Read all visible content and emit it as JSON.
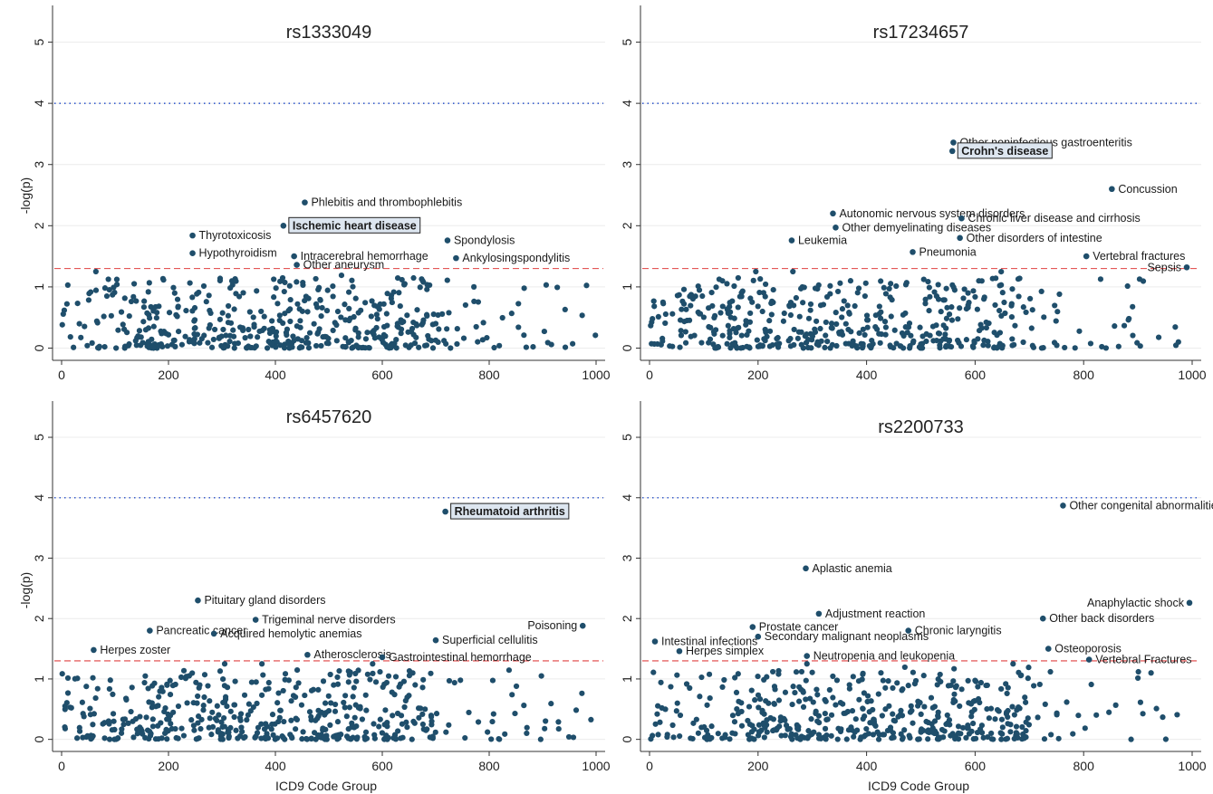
{
  "figure": {
    "xlabel": "ICD9 Code Group",
    "ylabel": "-log(p)"
  },
  "chart_data": [
    {
      "type": "scatter",
      "title": "rs1333049",
      "xlim": [
        0,
        1000
      ],
      "ylim": [
        -0.2,
        5.6
      ],
      "xticks": [
        0,
        200,
        400,
        600,
        800,
        1000
      ],
      "yticks": [
        0,
        1,
        2,
        3,
        4,
        5
      ],
      "grid": true,
      "bonferroni_threshold": 4,
      "nominal_threshold": 1.3,
      "point_color": "#1f4e6b",
      "bonferroni_color": "#3a5fcd",
      "nominal_color": "#e04040",
      "highlighted": [
        {
          "label": "Ischemic heart disease",
          "x": 415,
          "y": 2.0
        }
      ],
      "annotations": [
        {
          "label": "Phlebitis and thrombophlebitis",
          "x": 455,
          "y": 2.38
        },
        {
          "label": "Thyrotoxicosis",
          "x": 245,
          "y": 1.84
        },
        {
          "label": "Hypothyroidism",
          "x": 245,
          "y": 1.55
        },
        {
          "label": "Intracerebral hemorrhage",
          "x": 435,
          "y": 1.5
        },
        {
          "label": "Other aneurysm",
          "x": 440,
          "y": 1.36
        },
        {
          "label": "Spondylosis",
          "x": 722,
          "y": 1.76
        },
        {
          "label": "Ankylosingspondylitis",
          "x": 738,
          "y": 1.47
        }
      ],
      "seed": 11,
      "background_count": 480
    },
    {
      "type": "scatter",
      "title": "rs17234657",
      "xlim": [
        0,
        1000
      ],
      "ylim": [
        -0.2,
        5.6
      ],
      "xticks": [
        0,
        200,
        400,
        600,
        800,
        1000
      ],
      "yticks": [
        0,
        1,
        2,
        3,
        4,
        5
      ],
      "grid": true,
      "bonferroni_threshold": 4,
      "nominal_threshold": 1.3,
      "point_color": "#1f4e6b",
      "bonferroni_color": "#3a5fcd",
      "nominal_color": "#e04040",
      "highlighted": [
        {
          "label": "Crohn's disease",
          "x": 558,
          "y": 3.22
        }
      ],
      "annotations": [
        {
          "label": "Other noninfectious gastroenteritis",
          "x": 560,
          "y": 3.36
        },
        {
          "label": "Concussion",
          "x": 852,
          "y": 2.6
        },
        {
          "label": "Autonomic nervous system disorders",
          "x": 338,
          "y": 2.2
        },
        {
          "label": "Chronic liver disease and cirrhosis",
          "x": 575,
          "y": 2.12
        },
        {
          "label": "Other demyelinating diseases",
          "x": 343,
          "y": 1.97
        },
        {
          "label": "Other disorders of intestine",
          "x": 572,
          "y": 1.8
        },
        {
          "label": "Leukemia",
          "x": 262,
          "y": 1.76
        },
        {
          "label": "Pneumonia",
          "x": 485,
          "y": 1.57
        },
        {
          "label": "Vertebral fractures",
          "x": 805,
          "y": 1.5
        },
        {
          "label": "Sepsis",
          "x": 990,
          "y": 1.32
        }
      ],
      "seed": 23,
      "background_count": 470
    },
    {
      "type": "scatter",
      "title": "rs6457620",
      "xlim": [
        0,
        1000
      ],
      "ylim": [
        -0.2,
        5.6
      ],
      "xticks": [
        0,
        200,
        400,
        600,
        800,
        1000
      ],
      "yticks": [
        0,
        1,
        2,
        3,
        4,
        5
      ],
      "grid": true,
      "bonferroni_threshold": 4,
      "nominal_threshold": 1.3,
      "point_color": "#1f4e6b",
      "bonferroni_color": "#3a5fcd",
      "nominal_color": "#e04040",
      "highlighted": [
        {
          "label": "Rheumatoid arthritis",
          "x": 718,
          "y": 3.77
        }
      ],
      "annotations": [
        {
          "label": "Pituitary gland disorders",
          "x": 255,
          "y": 2.3
        },
        {
          "label": "Trigeminal nerve disorders",
          "x": 363,
          "y": 1.98
        },
        {
          "label": "Pancreatic cancer",
          "x": 165,
          "y": 1.8
        },
        {
          "label": "Acquired hemolytic anemias",
          "x": 285,
          "y": 1.75
        },
        {
          "label": "Superficial cellulitis",
          "x": 700,
          "y": 1.64
        },
        {
          "label": "Poisoning",
          "x": 975,
          "y": 1.88
        },
        {
          "label": "Herpes zoster",
          "x": 60,
          "y": 1.48
        },
        {
          "label": "Atherosclerosis",
          "x": 460,
          "y": 1.4
        },
        {
          "label": "Gastrointestinal hemorrhage",
          "x": 600,
          "y": 1.36
        }
      ],
      "seed": 37,
      "background_count": 480
    },
    {
      "type": "scatter",
      "title": "rs2200733",
      "xlim": [
        0,
        1000
      ],
      "ylim": [
        -0.2,
        5.6
      ],
      "xticks": [
        0,
        200,
        400,
        600,
        800,
        1000
      ],
      "yticks": [
        0,
        1,
        2,
        3,
        4,
        5
      ],
      "grid": true,
      "bonferroni_threshold": 4,
      "nominal_threshold": 1.3,
      "point_color": "#1f4e6b",
      "bonferroni_color": "#3a5fcd",
      "nominal_color": "#e04040",
      "highlighted": [],
      "annotations": [
        {
          "label": "Other congenital abnormalities",
          "x": 762,
          "y": 3.87
        },
        {
          "label": "Aplastic anemia",
          "x": 288,
          "y": 2.83
        },
        {
          "label": "Anaphylactic shock",
          "x": 995,
          "y": 2.26
        },
        {
          "label": "Adjustment reaction",
          "x": 312,
          "y": 2.08
        },
        {
          "label": "Other back disorders",
          "x": 725,
          "y": 2.0
        },
        {
          "label": "Intestinal infections",
          "x": 10,
          "y": 1.62
        },
        {
          "label": "Prostate cancer",
          "x": 190,
          "y": 1.86
        },
        {
          "label": "Chronic laryngitis",
          "x": 477,
          "y": 1.8
        },
        {
          "label": "Secondary malignant neoplasms",
          "x": 200,
          "y": 1.7
        },
        {
          "label": "Herpes simplex",
          "x": 55,
          "y": 1.46
        },
        {
          "label": "Neutropenia and leukopenia",
          "x": 290,
          "y": 1.38
        },
        {
          "label": "Osteoporosis",
          "x": 735,
          "y": 1.5
        },
        {
          "label": "Vertebral Fractures",
          "x": 810,
          "y": 1.32
        }
      ],
      "seed": 53,
      "background_count": 470
    }
  ]
}
